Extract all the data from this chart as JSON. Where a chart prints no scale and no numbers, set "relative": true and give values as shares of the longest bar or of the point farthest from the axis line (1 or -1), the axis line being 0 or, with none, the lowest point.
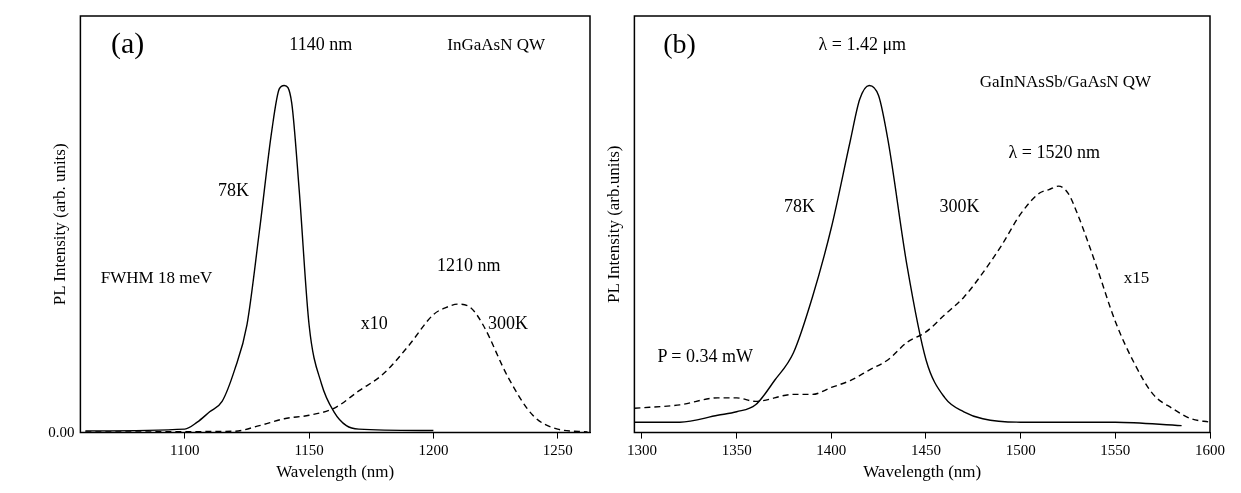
{
  "chart_data": [
    {
      "type": "line",
      "relative": true,
      "xlabel": "Wavelength (nm)",
      "ylabel": "PL Intensity (arb. units)",
      "xlim": [
        1058,
        1263
      ],
      "xticks": [
        1100,
        1150,
        1200,
        1250
      ],
      "grid": false,
      "legend": false,
      "marker": "none",
      "series": [
        {
          "color": "#000000",
          "line_style": "solid",
          "x": [
            1060,
            1100,
            1105,
            1110,
            1115,
            1120,
            1125,
            1130,
            1135,
            1138,
            1140,
            1143,
            1146,
            1150,
            1155,
            1160,
            1165,
            1170,
            1200
          ],
          "values": [
            0.005,
            0.01,
            0.03,
            0.06,
            0.09,
            0.18,
            0.31,
            0.58,
            0.87,
            0.99,
            1.0,
            0.95,
            0.7,
            0.31,
            0.14,
            0.06,
            0.02,
            0.01,
            0.006
          ]
        },
        {
          "color": "#000000",
          "line_style": "dashed",
          "x": [
            1060,
            1120,
            1130,
            1140,
            1150,
            1160,
            1170,
            1180,
            1190,
            1200,
            1205,
            1210,
            1215,
            1220,
            1230,
            1240,
            1250,
            1262
          ],
          "values": [
            0.002,
            0.004,
            0.02,
            0.04,
            0.05,
            0.07,
            0.12,
            0.17,
            0.25,
            0.34,
            0.36,
            0.37,
            0.36,
            0.31,
            0.16,
            0.05,
            0.01,
            0.002
          ]
        }
      ],
      "annotations": [
        "(a)",
        "1140 nm",
        "InGaAsN QW",
        "78K",
        "FWHM 18 meV",
        "1210 nm",
        "x10",
        "300K",
        "0.00"
      ]
    },
    {
      "type": "line",
      "relative": true,
      "xlabel": "Wavelength (nm)",
      "ylabel": "PL Intensity (arb.units)",
      "xlim": [
        1296,
        1600
      ],
      "xticks": [
        1300,
        1350,
        1400,
        1450,
        1500,
        1550,
        1600
      ],
      "grid": false,
      "legend": false,
      "marker": "none",
      "series": [
        {
          "color": "#000000",
          "line_style": "solid",
          "x": [
            1296,
            1320,
            1340,
            1350,
            1360,
            1370,
            1380,
            1390,
            1400,
            1410,
            1415,
            1420,
            1425,
            1430,
            1440,
            1450,
            1460,
            1470,
            1480,
            1500,
            1550,
            1585
          ],
          "values": [
            0.03,
            0.03,
            0.05,
            0.06,
            0.08,
            0.15,
            0.23,
            0.39,
            0.59,
            0.84,
            0.96,
            1.0,
            0.97,
            0.84,
            0.48,
            0.21,
            0.1,
            0.06,
            0.04,
            0.03,
            0.03,
            0.02
          ]
        },
        {
          "color": "#000000",
          "line_style": "dashed",
          "x": [
            1296,
            1320,
            1340,
            1350,
            1360,
            1380,
            1390,
            1400,
            1410,
            1420,
            1430,
            1440,
            1450,
            1460,
            1470,
            1480,
            1490,
            1500,
            1510,
            1515,
            1520,
            1525,
            1530,
            1540,
            1550,
            1560,
            1570,
            1580,
            1590,
            1600
          ],
          "values": [
            0.07,
            0.08,
            0.1,
            0.1,
            0.09,
            0.11,
            0.11,
            0.13,
            0.15,
            0.18,
            0.21,
            0.26,
            0.29,
            0.34,
            0.39,
            0.46,
            0.54,
            0.63,
            0.69,
            0.7,
            0.71,
            0.69,
            0.63,
            0.48,
            0.32,
            0.2,
            0.11,
            0.07,
            0.04,
            0.03
          ]
        }
      ],
      "annotations": [
        "(b)",
        "λ = 1.42 μm",
        "GaInNAsSb/GaAsN QW",
        "78K",
        "300K",
        "λ = 1520 nm",
        "x15",
        "P = 0.34 mW"
      ]
    }
  ]
}
